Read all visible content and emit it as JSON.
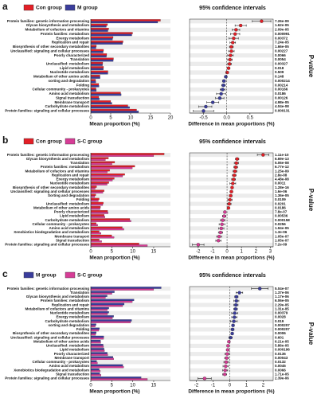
{
  "chart_data": [
    {
      "type": "extended_error_bar",
      "panel": "a",
      "title": "95% confidence intervals",
      "categories": [
        "Protein families: genetic information processing",
        "Glycan biosynthesis and metabolism",
        "Metabolism of cofactors and vitamins",
        "Protein families: metabolism",
        "Energy metabolism",
        "Replication and repair",
        "Biosynthesis of other secondary metabolites",
        "Unclassified: signaling and cellular processes",
        "Poorly characterized",
        "Translation",
        "Unclassified: metabolism",
        "Lipid metabolism",
        "Nucleotide metabolism",
        "Metabolism of other amino acids",
        "sorting and degradation",
        "Folding",
        "Cellular community - prokaryotes",
        "Amino acid metabolism",
        "Signal transduction",
        "Membrane transport",
        "Carbohydrate metabolism",
        "Protein families: signaling and cellular processes"
      ],
      "series": [
        {
          "name": "Con group",
          "color": "#e31f26",
          "values": [
            17.5,
            4.2,
            4.5,
            10.5,
            5.6,
            8.1,
            1.4,
            3.2,
            4.0,
            5.7,
            3.0,
            3.2,
            4.3,
            2.3,
            1.2,
            2.0,
            1.3,
            7.5,
            2.0,
            5.0,
            9.3,
            11.5
          ]
        },
        {
          "name": "M group",
          "color": "#3a3d9c",
          "values": [
            16.8,
            3.9,
            4.3,
            10.3,
            5.45,
            7.97,
            1.3,
            3.1,
            3.92,
            5.63,
            2.94,
            3.16,
            4.29,
            2.32,
            1.26,
            2.07,
            1.39,
            7.62,
            2.15,
            5.3,
            9.75,
            12.0
          ]
        }
      ],
      "xlabel": "Mean proportion (%)",
      "xlim": [
        0,
        20
      ],
      "xticks": [
        0,
        5,
        10,
        15,
        20
      ],
      "diff": {
        "values": [
          0.75,
          0.3,
          0.2,
          0.18,
          0.15,
          0.13,
          0.1,
          0.1,
          0.08,
          0.07,
          0.06,
          0.04,
          0.01,
          -0.02,
          -0.06,
          -0.07,
          -0.09,
          -0.12,
          -0.15,
          -0.3,
          -0.45,
          -0.5
        ],
        "ci_low": [
          0.55,
          0.18,
          0.12,
          0.08,
          0.05,
          0.07,
          0.06,
          0.04,
          0.02,
          0.02,
          0.02,
          0.01,
          -0.02,
          -0.05,
          -0.09,
          -0.11,
          -0.14,
          -0.22,
          -0.24,
          -0.43,
          -0.6,
          -0.72
        ],
        "ci_high": [
          0.95,
          0.42,
          0.28,
          0.28,
          0.25,
          0.19,
          0.14,
          0.16,
          0.14,
          0.12,
          0.1,
          0.07,
          0.04,
          0.01,
          -0.03,
          -0.03,
          -0.04,
          -0.02,
          -0.06,
          -0.17,
          -0.32,
          -0.28
        ]
      },
      "diff_xlabel": "Difference in mean proportions (%)",
      "diff_xlim": [
        -0.8,
        1.0
      ],
      "diff_xticks": [
        -0.5,
        {
          "value": 0,
          "label": "0.0"
        },
        0.5
      ],
      "p_values": [
        "7.26e-09",
        "1.62e-05",
        "2.09e-05",
        "0.000991",
        "0.00372",
        "7.24e-05",
        "1.66e-05",
        "0.00227",
        "0.0066",
        "0.0054",
        "0.00327",
        "0.018",
        "0.509",
        "0.148",
        "0.000214",
        "0.00214",
        "0.00166",
        "0.0186",
        "0.00126",
        "4.98e-05",
        "4.04e-08",
        "0.000131"
      ],
      "p_label": "P-value"
    },
    {
      "type": "extended_error_bar",
      "panel": "b",
      "title": "95% confidence intervals",
      "categories": [
        "Protein families: genetic information processing",
        "Glycan biosynthesis and metabolism",
        "Translation",
        "Protein families: metabolism",
        "Metabolism of cofactors and vitamins",
        "Replication and repair",
        "Energy metabolism",
        "Nucleotide metabolism",
        "Biosynthesis of other secondary metabolites",
        "Unclassified: signaling and cellular processes",
        "Sorting and degradation",
        "Folding",
        "Unclassified: metabolism",
        "Metabolism of other amino acids",
        "Poorly characterized",
        "Lipid metabolism",
        "Carbohydrate metabolism",
        "Cellular community - prokaryotes",
        "Amino acid metabolism",
        "Xenobiotics biodegradation and metabolism",
        "Membrane transport",
        "Signal transduction",
        "Protein families: signaling and cellular processes"
      ],
      "series": [
        {
          "name": "Con group",
          "color": "#e31f26",
          "values": [
            17.5,
            4.2,
            5.7,
            10.5,
            4.5,
            8.1,
            5.6,
            4.3,
            1.4,
            3.2,
            1.2,
            2.0,
            3.0,
            2.3,
            4.0,
            3.2,
            9.3,
            1.3,
            7.5,
            2.0,
            5.0,
            2.0,
            11.5
          ]
        },
        {
          "name": "S-C group",
          "color": "#d63d96",
          "values": [
            15.0,
            3.5,
            5.05,
            9.9,
            3.95,
            7.6,
            5.15,
            3.9,
            1.05,
            2.9,
            0.95,
            1.8,
            2.85,
            2.2,
            4.15,
            3.4,
            9.6,
            1.65,
            7.9,
            2.45,
            5.55,
            2.6,
            13.5
          ]
        }
      ],
      "xlabel": "Mean proportion (%)",
      "xlim": [
        0,
        19
      ],
      "xticks": [
        0,
        5,
        10,
        15
      ],
      "diff": {
        "values": [
          2.5,
          0.7,
          0.65,
          0.6,
          0.55,
          0.5,
          0.45,
          0.4,
          0.35,
          0.3,
          0.25,
          0.2,
          0.15,
          0.1,
          -0.15,
          -0.2,
          -0.3,
          -0.35,
          -0.4,
          -0.45,
          -0.55,
          -0.6,
          -2.0
        ],
        "ci_low": [
          2.1,
          0.58,
          0.5,
          0.47,
          0.42,
          0.37,
          0.32,
          0.2,
          0.3,
          0.2,
          0.15,
          0.05,
          0.02,
          0.02,
          -0.2,
          -0.32,
          -0.45,
          -0.55,
          -0.58,
          -0.6,
          -0.72,
          -0.78,
          -2.4
        ],
        "ci_high": [
          2.9,
          0.82,
          0.8,
          0.73,
          0.68,
          0.63,
          0.58,
          0.6,
          0.4,
          0.4,
          0.35,
          0.35,
          0.28,
          0.18,
          -0.1,
          -0.08,
          -0.15,
          -0.15,
          -0.22,
          -0.3,
          -0.38,
          -0.42,
          -1.6
        ]
      },
      "diff_xlabel": "Difference in mean proportions (%)",
      "diff_xlim": [
        -2.6,
        3.2
      ],
      "diff_xticks": [
        -2,
        -1,
        0,
        1,
        2,
        3
      ],
      "p_values": [
        "1.11e-10",
        "6.69e-13",
        "5.06e-08",
        "6.77e-12",
        "1.25e-09",
        "2.8e-08",
        "4.48e-08",
        "0.0011",
        "1.28e-16",
        "1.6e-06",
        "1.36e-05",
        "0.0109",
        "0.0201",
        "0.0186",
        "7.8e-07",
        "0.00536",
        "0.000158",
        "0.0256",
        "1.94e-05",
        "1.3e-06",
        "1.05e-07",
        "1.05e-07",
        "7.2e-09"
      ],
      "p_label": "P-value"
    },
    {
      "type": "extended_error_bar",
      "panel": "c",
      "title": "95% confidence intervals",
      "categories": [
        "Protein families: genetic information processing",
        "Translation",
        "Glycan biosynthesis and metabolism",
        "Protein families: metabolism",
        "Replication and repair",
        "Metabolism of cofactors and vitamins",
        "Nucleotide metabolism",
        "Energy metabolism",
        "Carbohydrate metabolism",
        "sorting and degradation",
        "Folding",
        "Biosynthesis of other secondary metabolites",
        "Unclassified: signaling and cellular processes",
        "Metabolism of other amino acids",
        "Unclassified: metabolism",
        "Lipid metabolism",
        "Poorly characterized",
        "Membrane transport",
        "Cellular community - prokaryotes",
        "Amino acid metabolism",
        "Xenobiotics biodegradation and metabolism",
        "Signal transduction",
        "Protein families: signaling and cellular processes"
      ],
      "series": [
        {
          "name": "M group",
          "color": "#3a3d9c",
          "values": [
            16.8,
            5.63,
            3.9,
            10.3,
            7.97,
            4.3,
            4.29,
            5.45,
            9.75,
            1.26,
            2.07,
            1.3,
            3.1,
            2.32,
            2.94,
            3.16,
            3.92,
            5.3,
            1.39,
            7.62,
            2.0,
            2.15,
            12.0
          ]
        },
        {
          "name": "S-C group",
          "color": "#d63d96",
          "values": [
            15.0,
            5.05,
            3.5,
            9.9,
            7.6,
            3.95,
            3.99,
            5.17,
            9.5,
            1.06,
            1.9,
            1.15,
            3.05,
            2.37,
            3.04,
            3.28,
            4.07,
            5.48,
            1.6,
            7.86,
            2.27,
            2.45,
            13.5
          ]
        }
      ],
      "xlabel": "Mean proportion (%)",
      "xlim": [
        0,
        19
      ],
      "xticks": [
        0,
        5,
        10,
        15
      ],
      "diff": {
        "values": [
          1.8,
          0.58,
          0.4,
          0.4,
          0.37,
          0.35,
          0.3,
          0.28,
          0.25,
          0.2,
          0.17,
          0.15,
          0.05,
          -0.05,
          -0.1,
          -0.12,
          -0.15,
          -0.18,
          -0.21,
          -0.24,
          -0.27,
          -0.3,
          -1.5
        ],
        "ci_low": [
          1.3,
          0.38,
          0.3,
          0.25,
          0.24,
          0.24,
          0.12,
          0.12,
          0.05,
          0.12,
          0.08,
          0.08,
          -0.05,
          -0.12,
          -0.16,
          -0.2,
          -0.28,
          -0.3,
          -0.35,
          -0.4,
          -0.42,
          -0.42,
          -1.9
        ],
        "ci_high": [
          2.3,
          0.78,
          0.5,
          0.55,
          0.5,
          0.46,
          0.48,
          0.44,
          0.45,
          0.28,
          0.26,
          0.22,
          0.15,
          0.02,
          -0.04,
          -0.04,
          -0.02,
          -0.06,
          -0.07,
          -0.08,
          -0.12,
          -0.18,
          -1.1
        ]
      },
      "diff_xlabel": "Difference in mean proportions (%)",
      "diff_xlim": [
        -2.4,
        2.6
      ],
      "diff_xticks": [
        -2,
        -1,
        0,
        1,
        2
      ],
      "p_values": [
        "5.04e-07",
        "1.37e-06",
        "1.17e-06",
        "6.06e-05",
        "2.29e-05",
        "1.31e-05",
        "0.00379",
        "0.0028",
        "0.019",
        "0.000207",
        "0.000207",
        "0.0006",
        "0.601",
        "6.21e-05",
        "5.86e-05",
        "0.000196",
        "0.0136",
        "0.00043",
        "0.0132",
        "0.0045",
        "0.0066",
        "1.71e-05",
        "2.39e-06"
      ],
      "p_label": "P-value"
    }
  ]
}
